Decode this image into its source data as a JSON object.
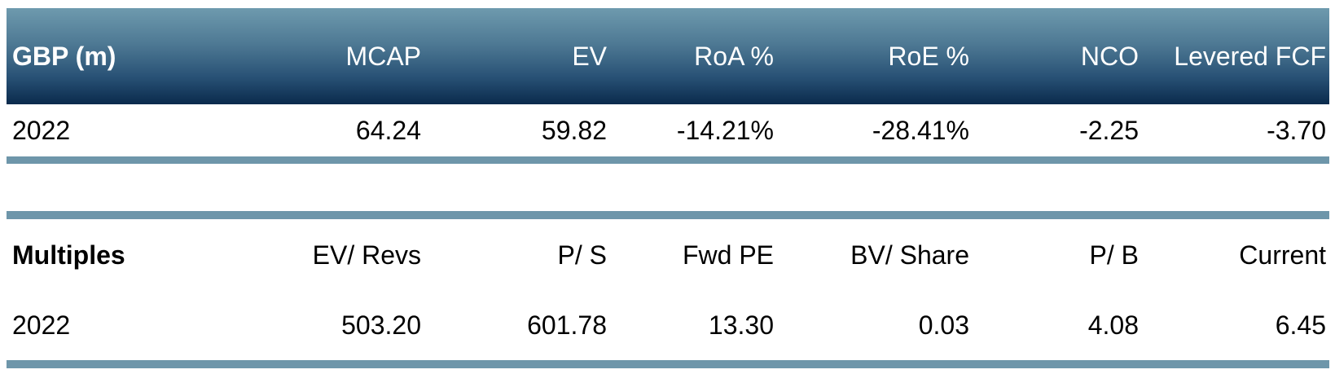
{
  "colors": {
    "background": "#ffffff",
    "header_gradient_top": "#6e9aae",
    "header_gradient_mid": "#4d7893",
    "header_gradient_low": "#285175",
    "header_gradient_bottom": "#0a2a4c",
    "divider_bar": "#6e96aa",
    "header_text": "#ffffff",
    "body_text": "#000000"
  },
  "financials_table": {
    "title": "GBP (m)",
    "columns": [
      "MCAP",
      "EV",
      "RoA %",
      "RoE %",
      "NCO",
      "Levered FCF"
    ],
    "rows": [
      {
        "label": "2022",
        "values": [
          "64.24",
          "59.82",
          "-14.21%",
          "-28.41%",
          "-2.25",
          "-3.70"
        ]
      }
    ]
  },
  "multiples_table": {
    "title": "Multiples",
    "columns": [
      "EV/ Revs",
      "P/ S",
      "Fwd PE",
      "BV/ Share",
      "P/ B",
      "Current"
    ],
    "rows": [
      {
        "label": "2022",
        "values": [
          "503.20",
          "601.78",
          "13.30",
          "0.03",
          "4.08",
          "6.45"
        ]
      }
    ]
  }
}
